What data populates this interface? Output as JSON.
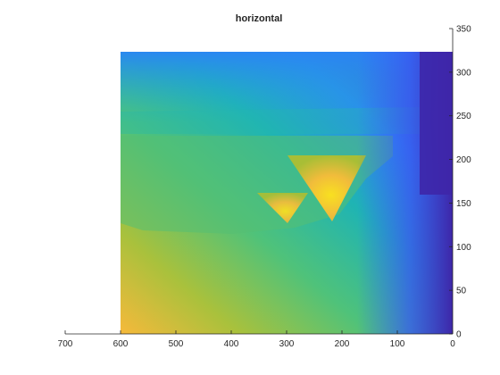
{
  "chart_data": {
    "type": "heatmap",
    "title": "horizontal",
    "xlabel": "",
    "ylabel": "",
    "x_direction": "reversed",
    "y_axis_location": "right",
    "xlim": [
      0,
      700
    ],
    "ylim": [
      0,
      350
    ],
    "x_ticks": [
      700,
      600,
      500,
      400,
      300,
      200,
      100,
      0
    ],
    "x_tick_labels": [
      "700",
      "600",
      "500",
      "400",
      "300",
      "200",
      "100",
      "0"
    ],
    "y_ticks": [
      0,
      50,
      100,
      150,
      200,
      250,
      300,
      350
    ],
    "y_tick_labels": [
      "0",
      "50",
      "100",
      "150",
      "200",
      "250",
      "300",
      "350"
    ],
    "data_extent": {
      "x": [
        0,
        600
      ],
      "y": [
        0,
        322
      ]
    },
    "colormap": "parula",
    "colormap_colors": [
      "#3e26a8",
      "#4433d6",
      "#3b62fe",
      "#2a85f4",
      "#1ba5da",
      "#20b5ad",
      "#55c072",
      "#a8be36",
      "#f1bc3b",
      "#f8e020"
    ],
    "grid": false,
    "legend": "none"
  }
}
